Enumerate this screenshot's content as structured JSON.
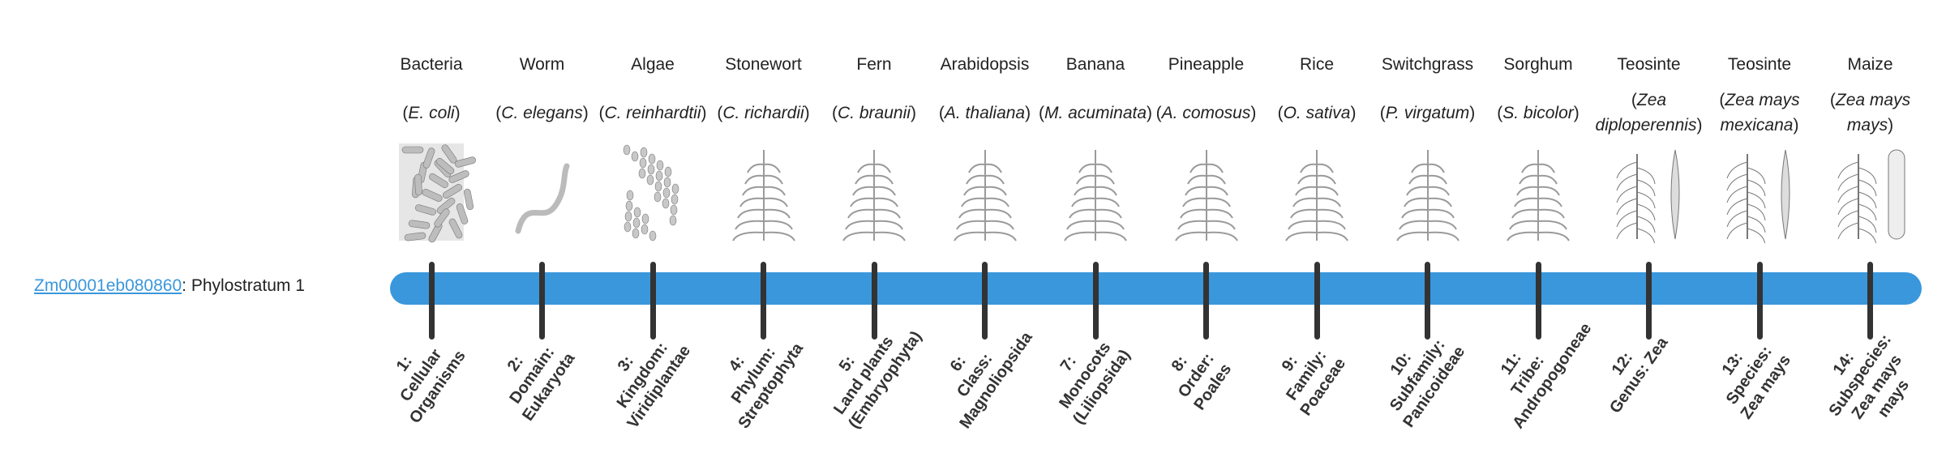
{
  "gene": {
    "id_link": "Zm00001eb080860",
    "suffix": ": Phylostratum 1"
  },
  "colors": {
    "bar": "#3a97dc",
    "tick": "#333333",
    "link": "#3a97dc"
  },
  "strata": [
    {
      "common": "Bacteria",
      "species": "E. coli",
      "number": "1:",
      "name": "Cellular Organisms",
      "icon": "bacteria-icon"
    },
    {
      "common": "Worm",
      "species": "C. elegans",
      "number": "2:",
      "name": "Domain: Eukaryota",
      "icon": "worm-icon"
    },
    {
      "common": "Algae",
      "species": "C. reinhardtii",
      "number": "3:",
      "name": "Kingdom: Viridiplantae",
      "icon": "algae-icon"
    },
    {
      "common": "Stonewort",
      "species": "C. richardii",
      "number": "4:",
      "name": "Phylum: Streptophyta",
      "icon": "stonewort-icon"
    },
    {
      "common": "Fern",
      "species": "C. braunii",
      "number": "5:",
      "name": "Land plants (Embryophyta)",
      "icon": "fern-icon"
    },
    {
      "common": "Arabidopsis",
      "species": "A. thaliana",
      "number": "6:",
      "name": "Class: Magnoliopsida",
      "icon": "arabidopsis-icon"
    },
    {
      "common": "Banana",
      "species": "M. acuminata",
      "number": "7:",
      "name": "Monocots (Liliopsida)",
      "icon": "banana-icon"
    },
    {
      "common": "Pineapple",
      "species": "A. comosus",
      "number": "8:",
      "name": "Order: Poales",
      "icon": "pineapple-icon"
    },
    {
      "common": "Rice",
      "species": "O. sativa",
      "number": "9:",
      "name": "Family: Poaceae",
      "icon": "rice-icon"
    },
    {
      "common": "Switchgrass",
      "species": "P. virgatum",
      "number": "10:",
      "name": "Subfamily: Panicoideae",
      "icon": "switchgrass-icon"
    },
    {
      "common": "Sorghum",
      "species": "S. bicolor",
      "number": "11:",
      "name": "Tribe: Andropogoneae",
      "icon": "sorghum-icon"
    },
    {
      "common": "Teosinte",
      "species": "Zea diploperennis",
      "number": "12:",
      "name": "Genus: Zea",
      "icon": "teosinte-icon"
    },
    {
      "common": "Teosinte",
      "species": "Zea mays mexicana",
      "number": "13:",
      "name": "Species: Zea mays",
      "icon": "teosinte-icon"
    },
    {
      "common": "Maize",
      "species": "Zea mays mays",
      "number": "14:",
      "name": "Subspecies: Zea mays mays",
      "icon": "maize-icon"
    }
  ]
}
